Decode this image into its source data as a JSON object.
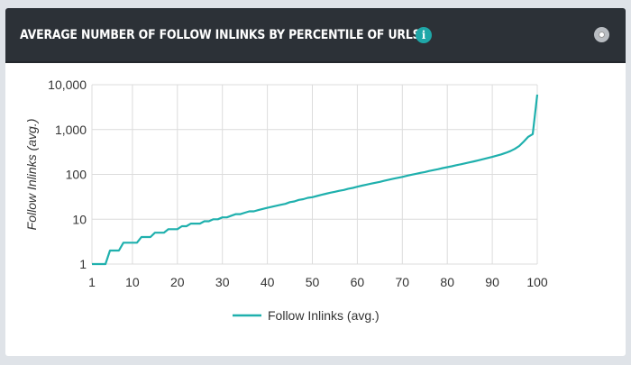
{
  "header": {
    "title": "AVERAGE NUMBER OF FOLLOW INLINKS BY PERCENTILE OF URLS",
    "info_icon": "i"
  },
  "chart_data": {
    "type": "line",
    "title": "AVERAGE NUMBER OF FOLLOW INLINKS BY PERCENTILE OF URLS",
    "xlabel": "",
    "ylabel": "Follow Inlinks (avg.)",
    "yscale": "log",
    "ylim": [
      1,
      10000
    ],
    "xlim": [
      1,
      100
    ],
    "xticks": [
      "1",
      "10",
      "20",
      "30",
      "40",
      "50",
      "60",
      "70",
      "80",
      "90",
      "100"
    ],
    "xtick_values": [
      1,
      10,
      20,
      30,
      40,
      50,
      60,
      70,
      80,
      90,
      100
    ],
    "yticks": [
      "1",
      "10",
      "100",
      "1,000",
      "10,000"
    ],
    "ytick_values": [
      1,
      10,
      100,
      1000,
      10000
    ],
    "grid": true,
    "legend_position": "bottom",
    "color": "#1fb0ad",
    "series": [
      {
        "name": "Follow Inlinks (avg.)",
        "values": [
          1,
          1,
          1,
          1,
          2,
          2,
          2,
          3,
          3,
          3,
          3,
          4,
          4,
          4,
          5,
          5,
          5,
          6,
          6,
          6,
          7,
          7,
          8,
          8,
          8,
          9,
          9,
          10,
          10,
          11,
          11,
          12,
          13,
          13,
          14,
          15,
          15,
          16,
          17,
          18,
          19,
          20,
          21,
          22,
          24,
          25,
          27,
          28,
          30,
          31,
          33,
          35,
          37,
          39,
          41,
          43,
          45,
          48,
          50,
          53,
          56,
          59,
          62,
          65,
          68,
          72,
          76,
          80,
          84,
          88,
          93,
          98,
          103,
          108,
          113,
          119,
          125,
          131,
          138,
          145,
          152,
          160,
          168,
          177,
          186,
          196,
          207,
          219,
          232,
          246,
          262,
          280,
          302,
          330,
          370,
          430,
          540,
          690,
          790,
          6000
        ]
      }
    ]
  }
}
